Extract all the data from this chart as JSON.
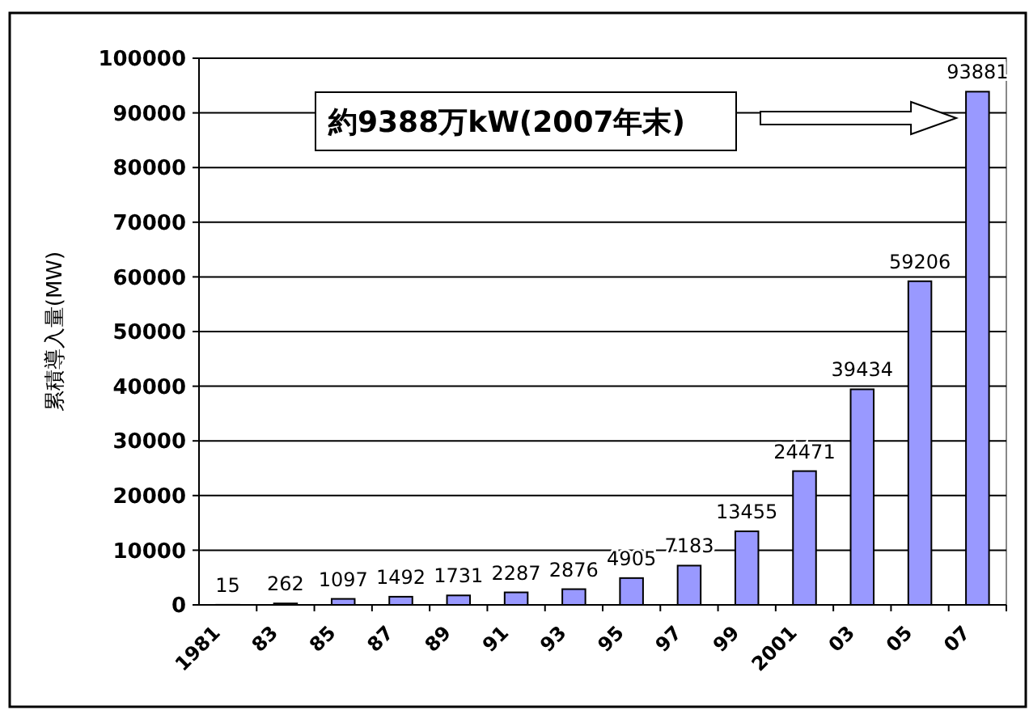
{
  "chart_data": {
    "type": "bar",
    "ylabel": "累積導入量(MW)",
    "categories": [
      "1981",
      "83",
      "85",
      "87",
      "89",
      "91",
      "93",
      "95",
      "97",
      "99",
      "2001",
      "03",
      "05",
      "07"
    ],
    "values": [
      15,
      262,
      1097,
      1492,
      1731,
      2287,
      2876,
      4905,
      7183,
      13455,
      24471,
      39434,
      59206,
      93881
    ],
    "color": "#9999ff",
    "ylim": [
      0,
      100000
    ],
    "yticks": [
      0,
      10000,
      20000,
      30000,
      40000,
      50000,
      60000,
      70000,
      80000,
      90000,
      100000
    ],
    "grid": "y",
    "data_labels": true,
    "annotations": [
      "約9388万kW(2007年末)"
    ]
  }
}
